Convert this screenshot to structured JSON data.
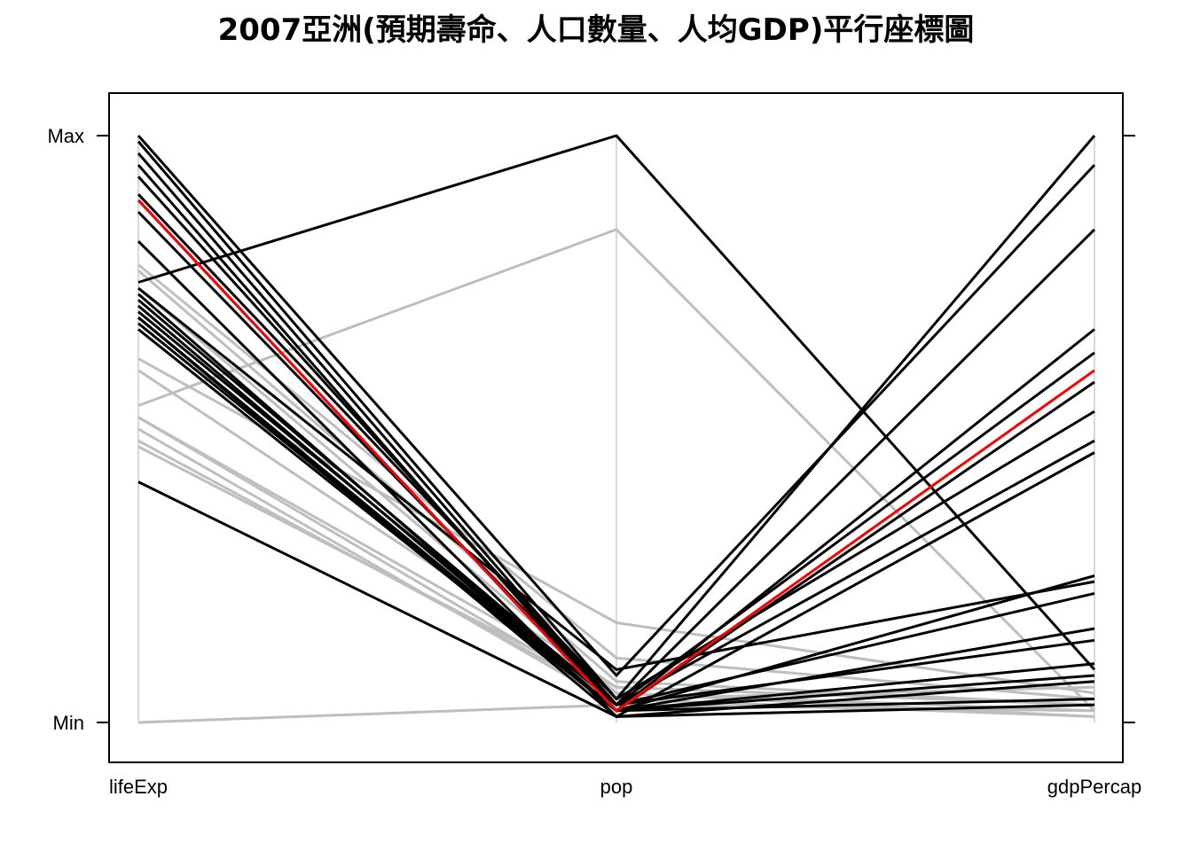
{
  "chart_data": {
    "type": "parallel-coordinates",
    "title": "2007亞洲(預期壽命、人口數量、人均GDP)平行座標圖",
    "axes": [
      "lifeExp",
      "pop",
      "gdpPercap"
    ],
    "y_tick_labels": [
      "Min",
      "Max"
    ],
    "scale": "each axis scaled from Min (0) to Max (1)",
    "colors": {
      "default": "#000000",
      "muted": "#bebebe",
      "highlight": "#ff0000",
      "axis_line": "#d9d9d9"
    },
    "series": [
      {
        "values": [
          1.0,
          0.08,
          0.95
        ],
        "color": "black"
      },
      {
        "values": [
          0.99,
          0.04,
          1.0
        ],
        "color": "black"
      },
      {
        "values": [
          0.97,
          0.03,
          0.84
        ],
        "color": "black"
      },
      {
        "values": [
          0.95,
          0.02,
          0.67
        ],
        "color": "black"
      },
      {
        "values": [
          0.93,
          0.03,
          0.63
        ],
        "color": "black"
      },
      {
        "values": [
          0.9,
          0.04,
          0.53
        ],
        "color": "black"
      },
      {
        "values": [
          0.89,
          0.02,
          0.58
        ],
        "color": "black"
      },
      {
        "values": [
          0.87,
          0.03,
          0.48
        ],
        "color": "black"
      },
      {
        "values": [
          0.82,
          0.01,
          0.46
        ],
        "color": "black"
      },
      {
        "values": [
          0.75,
          1.0,
          0.09
        ],
        "color": "black"
      },
      {
        "values": [
          0.74,
          0.09,
          0.24
        ],
        "color": "black"
      },
      {
        "values": [
          0.73,
          0.02,
          0.25
        ],
        "color": "black"
      },
      {
        "values": [
          0.72,
          0.03,
          0.22
        ],
        "color": "black"
      },
      {
        "values": [
          0.71,
          0.02,
          0.16
        ],
        "color": "black"
      },
      {
        "values": [
          0.7,
          0.03,
          0.14
        ],
        "color": "black"
      },
      {
        "values": [
          0.69,
          0.02,
          0.1
        ],
        "color": "black"
      },
      {
        "values": [
          0.69,
          0.01,
          0.07
        ],
        "color": "black"
      },
      {
        "values": [
          0.68,
          0.02,
          0.08
        ],
        "color": "black"
      },
      {
        "values": [
          0.67,
          0.02,
          0.04
        ],
        "color": "black"
      },
      {
        "values": [
          0.41,
          0.01,
          0.03
        ],
        "color": "black"
      },
      {
        "values": [
          0.78,
          0.11,
          0.04
        ],
        "color": "muted"
      },
      {
        "values": [
          0.77,
          0.07,
          0.03
        ],
        "color": "muted"
      },
      {
        "values": [
          0.74,
          0.05,
          0.02
        ],
        "color": "muted"
      },
      {
        "values": [
          0.62,
          0.17,
          0.05
        ],
        "color": "muted"
      },
      {
        "values": [
          0.6,
          0.06,
          0.03
        ],
        "color": "muted"
      },
      {
        "values": [
          0.54,
          0.84,
          0.02
        ],
        "color": "muted"
      },
      {
        "values": [
          0.52,
          0.06,
          0.03
        ],
        "color": "muted"
      },
      {
        "values": [
          0.52,
          0.04,
          0.01
        ],
        "color": "muted"
      },
      {
        "values": [
          0.5,
          0.03,
          0.02
        ],
        "color": "muted"
      },
      {
        "values": [
          0.48,
          0.04,
          0.06
        ],
        "color": "muted"
      },
      {
        "values": [
          0.47,
          0.05,
          0.01
        ],
        "color": "muted"
      },
      {
        "values": [
          0.0,
          0.03,
          0.02
        ],
        "color": "muted"
      },
      {
        "values": [
          0.89,
          0.02,
          0.6
        ],
        "color": "highlight"
      }
    ]
  }
}
